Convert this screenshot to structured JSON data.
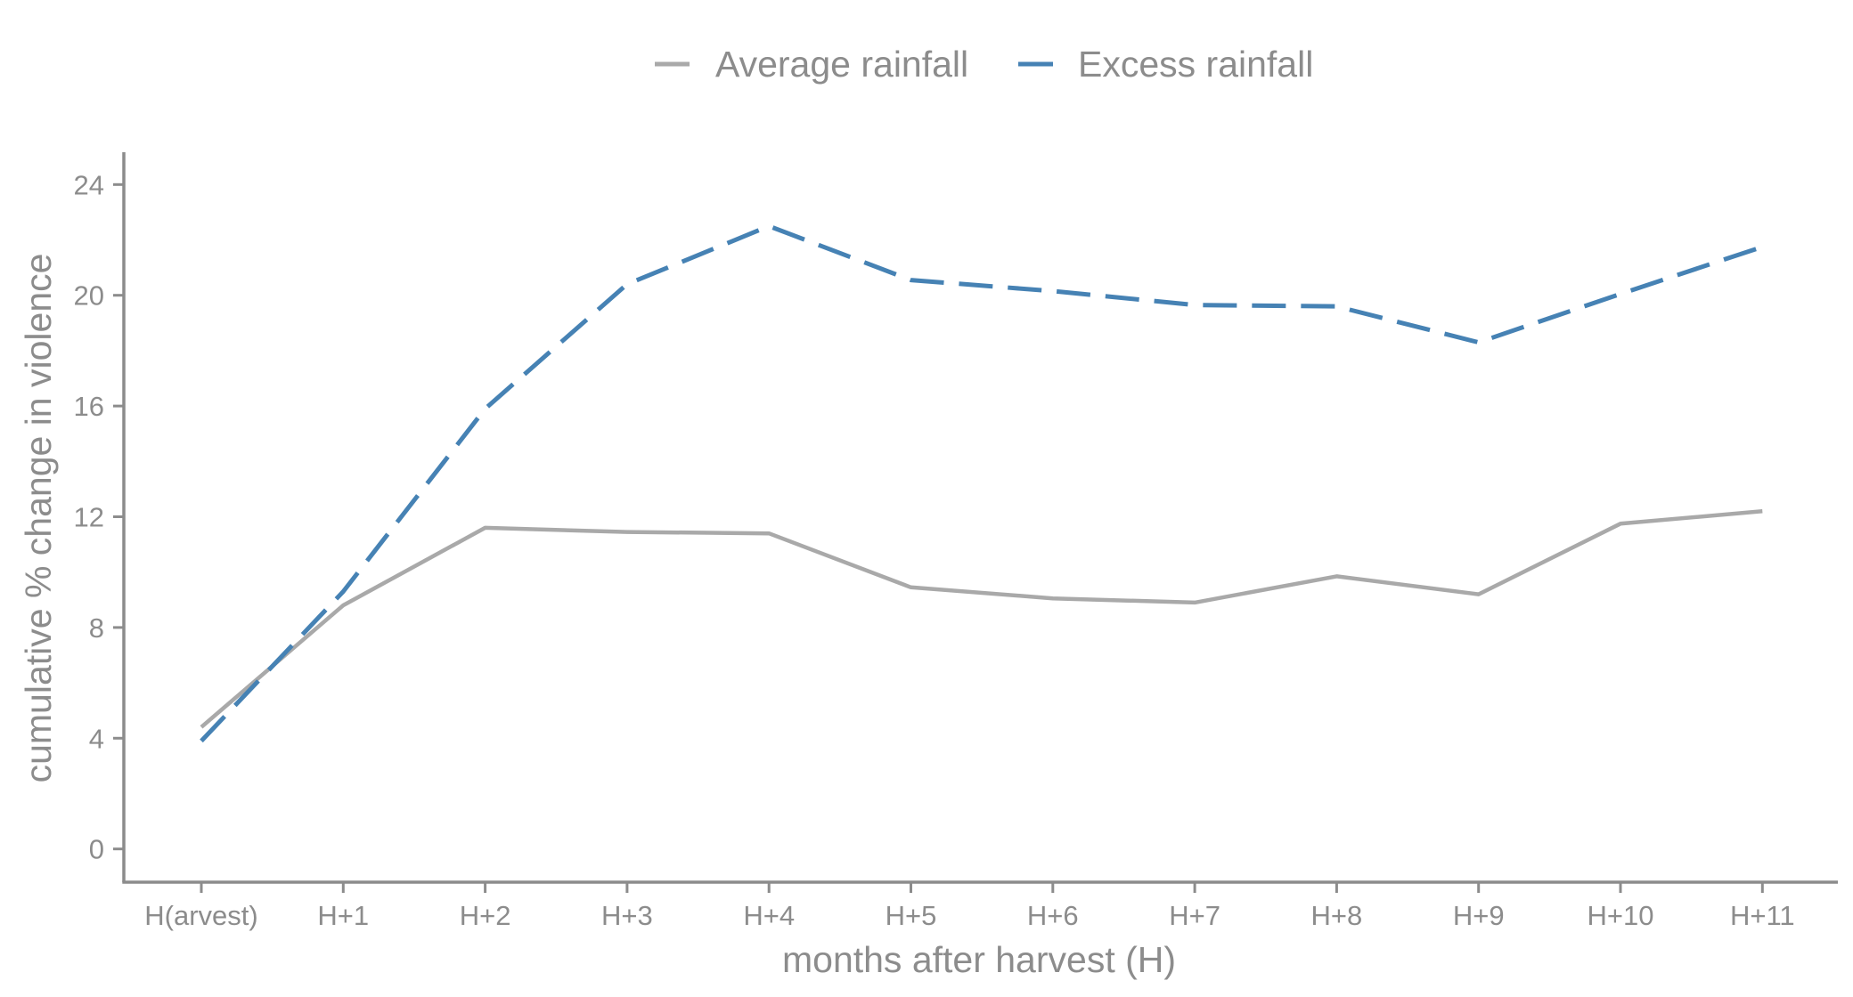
{
  "chart_data": {
    "type": "line",
    "categories": [
      "H(arvest)",
      "H+1",
      "H+2",
      "H+3",
      "H+4",
      "H+5",
      "H+6",
      "H+7",
      "H+8",
      "H+9",
      "H+10",
      "H+11"
    ],
    "series": [
      {
        "name": "Average rainfall",
        "color": "#a9a9a9",
        "dash": "solid",
        "values": [
          4.4,
          8.8,
          11.6,
          11.45,
          11.4,
          9.45,
          9.05,
          8.9,
          9.85,
          9.2,
          11.75,
          12.2
        ]
      },
      {
        "name": "Excess rainfall",
        "color": "#4682b4",
        "dash": "dashed",
        "values": [
          3.9,
          9.3,
          15.9,
          20.4,
          22.5,
          20.55,
          20.15,
          19.65,
          19.6,
          18.3,
          20.05,
          21.75
        ]
      }
    ],
    "xlabel": "months after harvest (H)",
    "ylabel": "cumulative % change in violence",
    "ylim": [
      -1.2,
      25.2
    ],
    "yticks": [
      0,
      4,
      8,
      12,
      16,
      20,
      24
    ],
    "ytick_labels": [
      "0",
      "4",
      "8",
      "12",
      "16",
      "20",
      "24"
    ],
    "grid": false,
    "legend_position": "top-center"
  }
}
